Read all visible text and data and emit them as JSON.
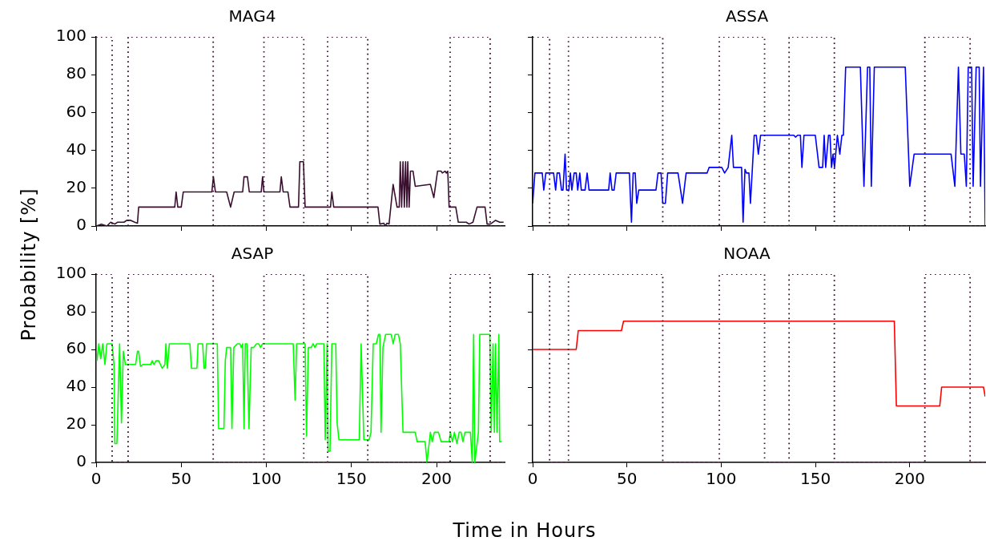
{
  "chart_data": [
    {
      "type": "line",
      "title": "MAG4",
      "ylabel": "Probability [%]",
      "xlim": [
        0,
        240
      ],
      "xticks": [
        0,
        50,
        100,
        150,
        200
      ],
      "ylim": [
        0,
        100
      ],
      "yticks": [
        0,
        20,
        40,
        60,
        80,
        100
      ],
      "tick_labels": "y",
      "legend": false,
      "grid": false,
      "series": [
        {
          "color": "#3a1030",
          "line_style": "dotted",
          "x": [
            0,
            9.4,
            9.4,
            18.8,
            18.8,
            68.8,
            68.8,
            98.6,
            98.6,
            122,
            122,
            136,
            136,
            159.6,
            159.6,
            208,
            208,
            231.5,
            231.5,
            240
          ],
          "values": [
            100,
            100,
            0,
            0,
            100,
            100,
            0,
            0,
            100,
            100,
            0,
            0,
            100,
            100,
            0,
            0,
            100,
            100,
            0,
            0
          ]
        },
        {
          "color": "#3a1030",
          "x": [
            0,
            3.1,
            6.3,
            8.6,
            11,
            12.5,
            16.4,
            18,
            20.3,
            22.7,
            24.3,
            25,
            46.2,
            47,
            48,
            50,
            51.2,
            68,
            68.9,
            70.1,
            76.7,
            79,
            81.1,
            86.1,
            86.9,
            88.9,
            90,
            97,
            97.8,
            98.6,
            108,
            108.8,
            109.9,
            112.7,
            113.9,
            118.9,
            119.7,
            121.8,
            122.8,
            137.7,
            138.5,
            139.6,
            165.6,
            166.7,
            169,
            169.8,
            170.9,
            172.1,
            174.5,
            176.8,
            178.1,
            178.7,
            179.5,
            180.3,
            181.1,
            181.8,
            182.6,
            183.1,
            183.9,
            184.7,
            186.2,
            187.5,
            196.4,
            198.4,
            200.6,
            202.7,
            203.4,
            205,
            205.8,
            206.6,
            207.4,
            211.3,
            212.8,
            217.5,
            219.1,
            221.4,
            223.8,
            228.5,
            229.7,
            231.6,
            234.7,
            237.1,
            239.4
          ],
          "values": [
            0,
            1,
            0,
            2,
            1,
            2,
            2,
            3,
            3,
            2,
            1.5,
            10,
            10,
            18,
            10,
            10,
            18,
            18,
            26,
            18,
            18,
            10,
            18,
            18,
            26,
            26,
            18,
            18,
            26,
            18,
            18,
            26,
            18,
            18,
            10,
            10,
            34,
            34,
            10,
            10,
            18,
            10,
            10,
            1,
            1.5,
            0,
            1.5,
            1,
            22,
            10,
            10,
            34,
            10,
            34,
            10,
            34,
            10,
            34,
            10,
            29,
            29,
            21,
            22,
            15,
            29,
            29,
            28,
            29,
            28,
            29,
            10,
            10,
            2,
            2,
            1,
            2,
            10,
            10,
            1,
            1,
            3,
            2,
            2
          ]
        }
      ]
    },
    {
      "type": "line",
      "title": "ASSA",
      "xlim": [
        0,
        240
      ],
      "xticks": [
        0,
        50,
        100,
        150,
        200
      ],
      "ylim": [
        0,
        100
      ],
      "yticks": [
        0,
        20,
        40,
        60,
        80,
        100
      ],
      "tick_labels": false,
      "legend": false,
      "grid": false,
      "series": [
        {
          "color": "#3a1030",
          "line_style": "dotted",
          "x": [
            0,
            9,
            9,
            19,
            19,
            69,
            69,
            99,
            99,
            123,
            123,
            136,
            136,
            160,
            160,
            208,
            208,
            232,
            232,
            240
          ],
          "values": [
            100,
            100,
            0,
            0,
            100,
            100,
            0,
            0,
            100,
            100,
            0,
            0,
            100,
            100,
            0,
            0,
            100,
            100,
            0,
            0
          ]
        },
        {
          "color": "#0000ff",
          "x": [
            0,
            1.2,
            5.1,
            5.9,
            7,
            11.1,
            12.2,
            13,
            14.2,
            15.3,
            16.1,
            17.2,
            18,
            19.2,
            20,
            20.8,
            22,
            23.1,
            23.9,
            25,
            25.8,
            27.8,
            28.9,
            29.9,
            40.3,
            41.1,
            42.1,
            43.2,
            44.3,
            51.3,
            52.4,
            53.3,
            54.4,
            55.2,
            56.3,
            65.4,
            66.5,
            68.1,
            69,
            70.4,
            71.6,
            77.1,
            79.5,
            81.4,
            92.5,
            93.6,
            100.3,
            101.8,
            103.7,
            105.6,
            106.5,
            110.8,
            111.6,
            112.6,
            113.4,
            114.7,
            115.5,
            117.5,
            118.6,
            119.7,
            120.9,
            138.5,
            139.4,
            140.5,
            142,
            142.8,
            143.9,
            149.9,
            151.9,
            153.8,
            154.6,
            155.4,
            156.9,
            157.7,
            158.5,
            159.3,
            160.1,
            161.6,
            162.9,
            164,
            164.8,
            166,
            173.8,
            175.7,
            177.6,
            178.8,
            179.6,
            181.2,
            197.6,
            200,
            202.3,
            221.9,
            223.9,
            225.8,
            227.1,
            228.9,
            230,
            231,
            232.8,
            233.6,
            235.2,
            236.8,
            237.5,
            239.1,
            240
          ],
          "values": [
            12,
            28,
            28,
            19,
            28,
            28,
            19,
            28,
            28,
            19,
            19,
            38,
            19,
            19,
            28,
            19,
            28,
            28,
            19,
            28,
            19,
            19,
            28,
            19,
            19,
            28,
            19,
            19,
            28,
            28,
            2,
            28,
            28,
            12,
            19,
            19,
            28,
            28,
            12,
            12,
            28,
            28,
            12,
            28,
            28,
            31,
            31,
            28,
            31,
            48,
            31,
            31,
            2,
            30,
            28,
            28,
            12,
            48,
            48,
            38,
            48,
            48,
            47,
            48,
            48,
            31,
            48,
            48,
            31,
            31,
            48,
            31,
            48,
            48,
            31,
            38,
            31,
            48,
            38,
            48,
            48,
            84,
            84,
            21,
            84,
            84,
            21,
            84,
            84,
            21,
            38,
            38,
            21,
            84,
            38,
            38,
            21,
            84,
            84,
            21,
            84,
            84,
            21,
            84,
            0
          ]
        }
      ]
    },
    {
      "type": "line",
      "title": "ASAP",
      "xlabel": "Time in Hours",
      "xlim": [
        0,
        240
      ],
      "xticks": [
        0,
        50,
        100,
        150,
        200
      ],
      "ylim": [
        0,
        100
      ],
      "yticks": [
        0,
        20,
        40,
        60,
        80,
        100
      ],
      "legend": false,
      "grid": false,
      "series": [
        {
          "color": "#3a1030",
          "line_style": "dotted",
          "x": [
            0,
            9.4,
            9.4,
            18.8,
            18.8,
            68.8,
            68.8,
            98.6,
            98.6,
            122,
            122,
            136,
            136,
            159.6,
            159.6,
            208,
            208,
            231.5,
            231.5,
            240
          ],
          "values": [
            100,
            100,
            0,
            0,
            100,
            100,
            0,
            0,
            100,
            100,
            0,
            0,
            100,
            100,
            0,
            0,
            100,
            100,
            0,
            0
          ]
        },
        {
          "color": "#00ff00",
          "x": [
            0.5,
            1.6,
            2.7,
            3.9,
            5.2,
            6.3,
            9.4,
            10.5,
            11,
            12.2,
            13.8,
            14.9,
            16,
            17.2,
            23.2,
            24.3,
            25,
            26.1,
            27.4,
            32.1,
            32.9,
            34,
            35.2,
            36.8,
            38.8,
            40.4,
            41,
            41.9,
            43,
            55.1,
            56,
            59.2,
            59.9,
            62.6,
            63.4,
            64.2,
            64.9,
            71.2,
            72,
            75.1,
            75.9,
            76.7,
            79,
            79.8,
            80.9,
            82.9,
            84.5,
            85.3,
            86.1,
            86.9,
            87.6,
            88.7,
            89.8,
            91.1,
            92.6,
            94.2,
            95.5,
            96.6,
            97.8,
            115.8,
            116.9,
            117.8,
            122.8,
            123.6,
            124.7,
            126.4,
            127.5,
            128.6,
            129.6,
            133.8,
            134.6,
            135.7,
            136.3,
            137.4,
            138.5,
            140.8,
            141.6,
            142.7,
            154.6,
            155.7,
            157.3,
            160.4,
            161.5,
            162.8,
            164.6,
            165.9,
            166.7,
            167.4,
            168.5,
            170.1,
            173.4,
            174.5,
            175.7,
            177.6,
            178.7,
            180.3,
            187.5,
            188.6,
            193.3,
            194.4,
            196.4,
            197.5,
            198.7,
            201.1,
            202.7,
            207.4,
            208.1,
            209.4,
            210.5,
            212,
            213.3,
            214.4,
            215.5,
            216.7,
            219.9,
            221,
            221.8,
            222.5,
            224.6,
            225.4,
            231.3,
            232.1,
            233.2,
            234,
            234.7,
            235.5,
            236.6,
            237.1,
            238.3
          ],
          "values": [
            54,
            63,
            55,
            63,
            52,
            63,
            63,
            52,
            10,
            10,
            63,
            21,
            59,
            52,
            52,
            59,
            59,
            51,
            52,
            52,
            54,
            52,
            54,
            54,
            50,
            52,
            63,
            50,
            63,
            63,
            50,
            50,
            63,
            63,
            50,
            50,
            63,
            63,
            18,
            18,
            54,
            61,
            61,
            18,
            61,
            63,
            63,
            61,
            63,
            18,
            63,
            63,
            18,
            61,
            61,
            63,
            63,
            61,
            63,
            63,
            33,
            63,
            63,
            14,
            61,
            61,
            63,
            61,
            63,
            63,
            12,
            63,
            6,
            6,
            63,
            63,
            21,
            12,
            12,
            63,
            12,
            12,
            16,
            63,
            63,
            68,
            68,
            16,
            61,
            68,
            68,
            63,
            68,
            68,
            63,
            16,
            16,
            11,
            11,
            0,
            16,
            11,
            16,
            16,
            11,
            11,
            16,
            11,
            16,
            10,
            16,
            16,
            11,
            16,
            16,
            0,
            68,
            0,
            16,
            68,
            68,
            16,
            63,
            16,
            63,
            16,
            68,
            11,
            11
          ]
        }
      ]
    },
    {
      "type": "line",
      "title": "NOAA",
      "xlim": [
        0,
        240
      ],
      "xticks": [
        0,
        50,
        100,
        150,
        200
      ],
      "ylim": [
        0,
        100
      ],
      "yticks": [
        0,
        20,
        40,
        60,
        80,
        100
      ],
      "tick_labels": "x",
      "legend": false,
      "grid": false,
      "series": [
        {
          "color": "#3a1030",
          "line_style": "dotted",
          "x": [
            0,
            9,
            9,
            19,
            19,
            69,
            69,
            99,
            99,
            123,
            123,
            136,
            136,
            160,
            160,
            208,
            208,
            232,
            232,
            240
          ],
          "values": [
            100,
            100,
            0,
            0,
            100,
            100,
            0,
            0,
            100,
            100,
            0,
            0,
            100,
            100,
            0,
            0,
            100,
            100,
            0,
            0
          ]
        },
        {
          "color": "#ff0000",
          "x": [
            0,
            23.1,
            24.2,
            47.1,
            48.2,
            191.8,
            192.9,
            215.9,
            216.9,
            239.1,
            240
          ],
          "values": [
            60,
            60,
            70,
            70,
            75,
            75,
            30,
            30,
            40,
            40,
            35
          ]
        }
      ]
    }
  ]
}
